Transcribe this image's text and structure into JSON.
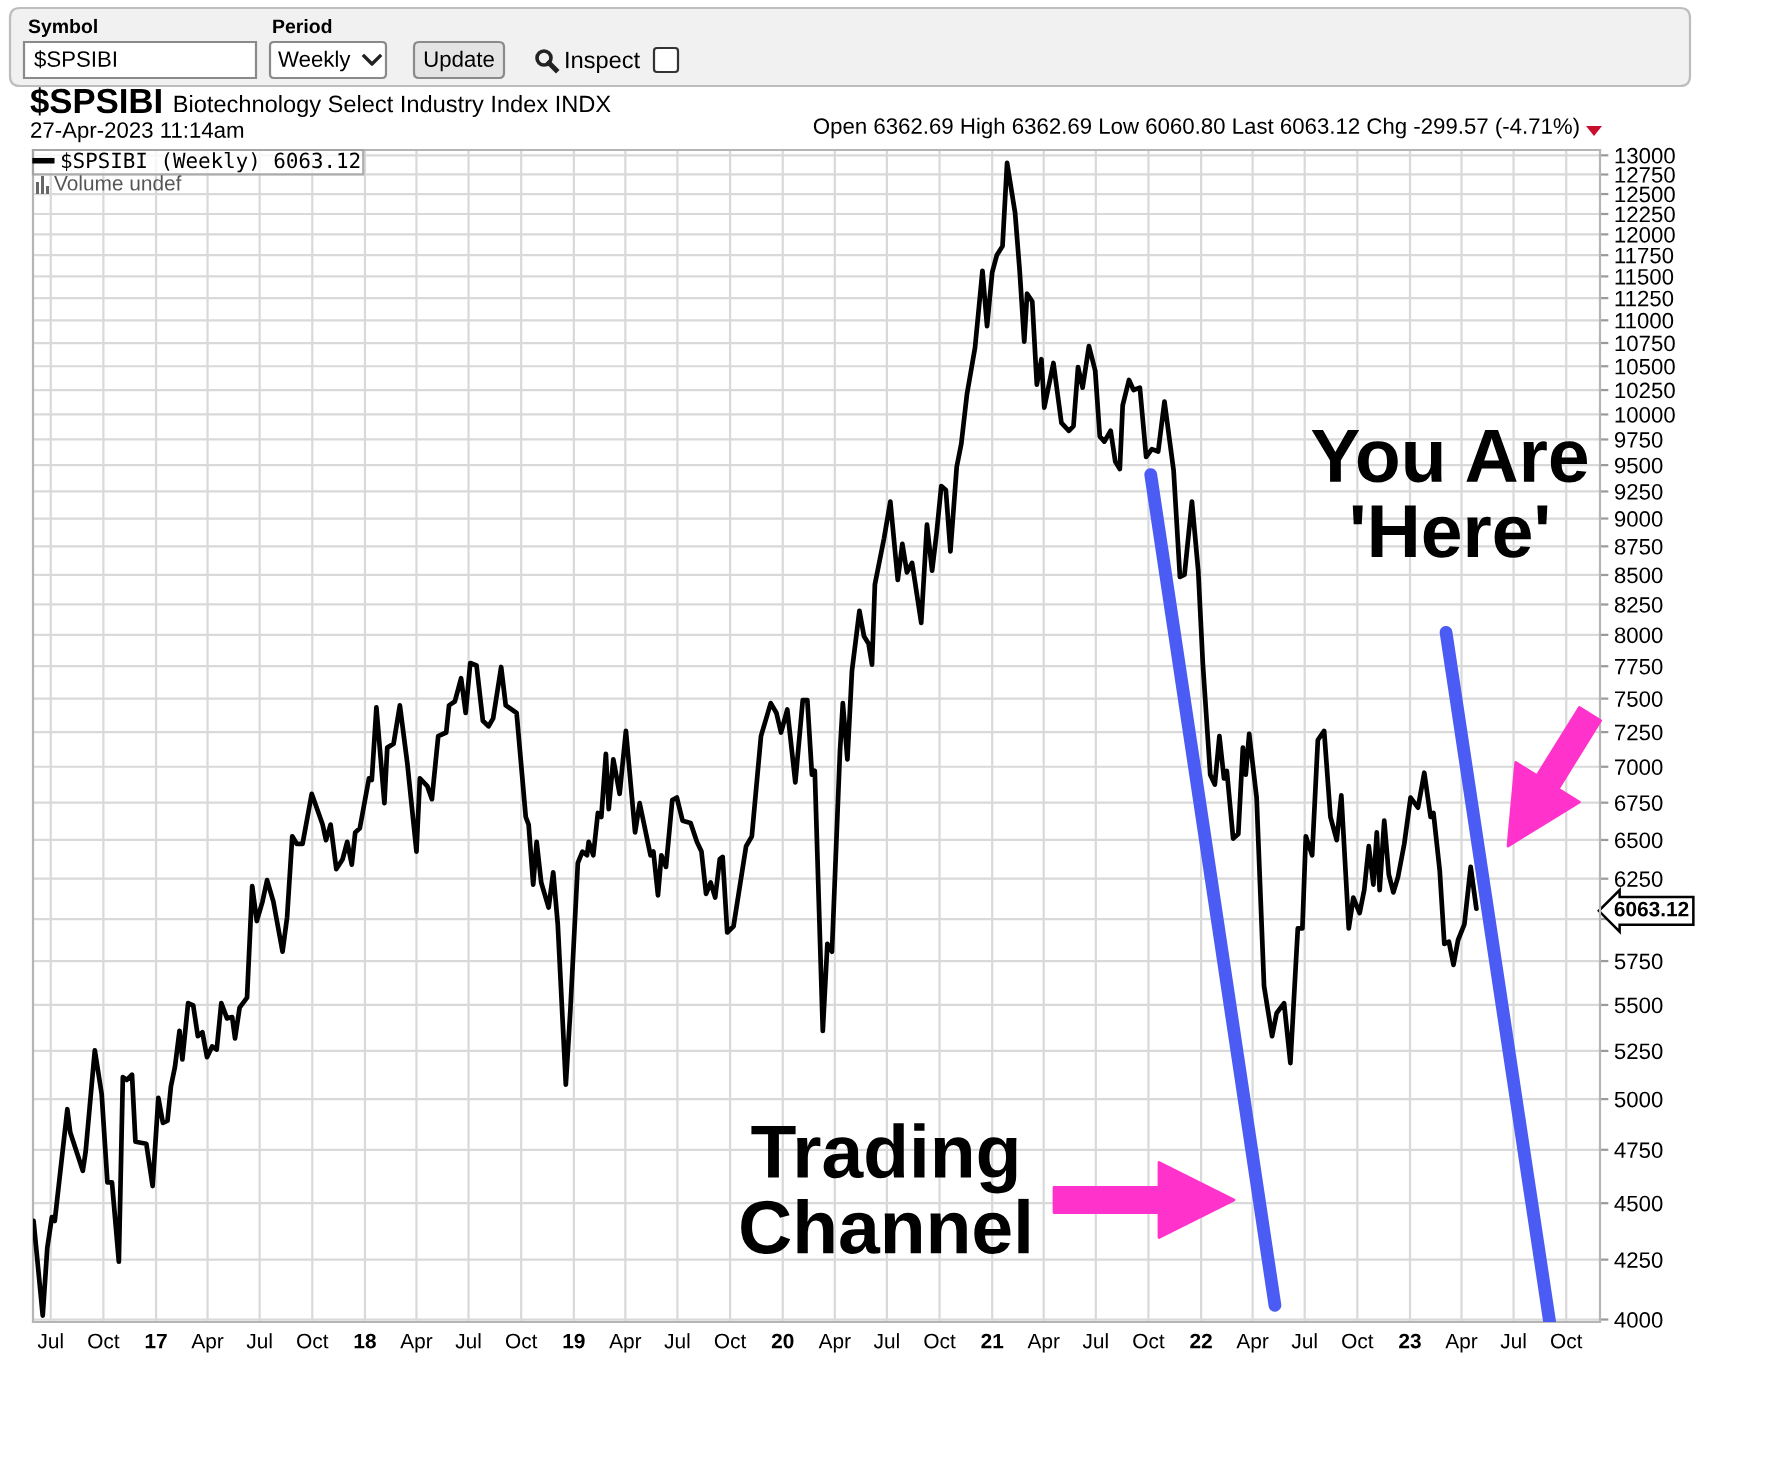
{
  "chart_data": {
    "type": "line",
    "title": "$SPSIBI",
    "subtitle": "Biotechnology Select Industry Index INDX",
    "annotations": [
      "Symbol",
      "$SPSIBI",
      "Period",
      "Weekly",
      "Update",
      "Inspect",
      "27-Apr-2023 11:14am",
      "Open 6362.69 High 6362.69 Low 6060.80 Last 6063.12 Chg -299.57 (-4.71%)",
      "Volume undef",
      "Trading\nChannel",
      "You Are\n'Here'"
    ],
    "series": [
      {
        "name": "$SPSIBI (Weekly) 6063.12",
        "color": "#000000",
        "x": [
          "2016-06-01",
          "2016-06-17",
          "2016-06-25",
          "2016-07-03",
          "2016-07-08",
          "2016-07-30",
          "2016-08-04",
          "2016-08-26",
          "2016-08-31",
          "2016-09-16",
          "2016-09-28",
          "2016-10-08",
          "2016-10-16",
          "2016-10-28",
          "2016-11-04",
          "2016-11-11",
          "2016-11-20",
          "2016-11-26",
          "2016-12-15",
          "2016-12-26",
          "2017-01-05",
          "2017-01-13",
          "2017-01-21",
          "2017-01-27",
          "2017-02-03",
          "2017-02-11",
          "2017-02-16",
          "2017-02-26",
          "2017-03-07",
          "2017-03-15",
          "2017-03-23",
          "2017-03-31",
          "2017-04-09",
          "2017-04-17",
          "2017-04-25",
          "2017-05-05",
          "2017-05-14",
          "2017-05-19",
          "2017-05-27",
          "2017-06-09",
          "2017-06-18",
          "2017-06-26",
          "2017-07-06",
          "2017-07-14",
          "2017-07-25",
          "2017-08-10",
          "2017-08-18",
          "2017-08-27",
          "2017-09-04",
          "2017-09-14",
          "2017-09-30",
          "2017-10-19",
          "2017-10-25",
          "2017-11-02",
          "2017-11-12",
          "2017-11-23",
          "2017-12-01",
          "2017-12-09",
          "2017-12-15",
          "2017-12-23",
          "2018-01-08",
          "2018-01-13",
          "2018-01-21",
          "2018-02-04",
          "2018-02-09",
          "2018-02-20",
          "2018-03-03",
          "2018-03-16",
          "2018-04-01",
          "2018-04-07",
          "2018-04-20",
          "2018-04-28",
          "2018-05-09",
          "2018-05-23",
          "2018-05-28",
          "2018-06-07",
          "2018-06-18",
          "2018-06-26",
          "2018-07-04",
          "2018-07-15",
          "2018-07-26",
          "2018-08-05",
          "2018-08-13",
          "2018-08-27",
          "2018-09-04",
          "2018-09-23",
          "2018-10-09",
          "2018-10-14",
          "2018-10-22",
          "2018-10-28",
          "2018-11-05",
          "2018-11-18",
          "2018-11-26",
          "2018-12-04",
          "2018-12-18",
          "2018-12-26",
          "2019-01-08",
          "2019-01-16",
          "2019-01-24",
          "2019-01-27",
          "2019-02-04",
          "2019-02-12",
          "2019-02-18",
          "2019-02-26",
          "2019-03-03",
          "2019-03-11",
          "2019-03-22",
          "2019-04-02",
          "2019-04-18",
          "2019-04-26",
          "2019-05-15",
          "2019-05-20",
          "2019-05-28",
          "2019-06-03",
          "2019-06-11",
          "2019-06-22",
          "2019-06-30",
          "2019-07-10",
          "2019-07-24",
          "2019-08-04",
          "2019-08-12",
          "2019-08-20",
          "2019-08-28",
          "2019-09-05",
          "2019-09-13",
          "2019-09-18",
          "2019-09-26",
          "2019-10-07",
          "2019-10-29",
          "2019-11-08",
          "2019-11-24",
          "2019-12-11",
          "2019-12-21",
          "2019-12-29",
          "2020-01-09",
          "2020-01-23",
          "2020-02-05",
          "2020-02-13",
          "2020-02-21",
          "2020-02-26",
          "2020-03-11",
          "2020-03-19",
          "2020-03-27",
          "2020-04-10",
          "2020-04-15",
          "2020-04-23",
          "2020-05-01",
          "2020-05-14",
          "2020-05-22",
          "2020-05-30",
          "2020-06-05",
          "2020-06-10",
          "2020-06-26",
          "2020-07-07",
          "2020-07-20",
          "2020-07-28",
          "2020-08-05",
          "2020-08-14",
          "2020-08-30",
          "2020-09-09",
          "2020-09-18",
          "2020-09-26",
          "2020-10-04",
          "2020-10-12",
          "2020-10-20",
          "2020-10-31",
          "2020-11-08",
          "2020-11-18",
          "2020-12-02",
          "2020-12-15",
          "2020-12-23",
          "2021-01-01",
          "2021-01-09",
          "2021-01-19",
          "2021-01-27",
          "2021-02-10",
          "2021-02-18",
          "2021-02-26",
          "2021-03-03",
          "2021-03-12",
          "2021-03-20",
          "2021-03-28",
          "2021-04-02",
          "2021-04-18",
          "2021-05-02",
          "2021-05-15",
          "2021-05-23",
          "2021-05-31",
          "2021-06-08",
          "2021-06-19",
          "2021-06-30",
          "2021-07-08",
          "2021-07-16",
          "2021-07-27",
          "2021-08-04",
          "2021-08-12",
          "2021-08-17",
          "2021-08-28",
          "2021-09-05",
          "2021-09-16",
          "2021-09-27",
          "2021-10-07",
          "2021-10-18",
          "2021-10-29",
          "2021-11-14",
          "2021-11-25",
          "2021-12-03",
          "2021-12-16",
          "2021-12-27",
          "2022-01-04",
          "2022-01-17",
          "2022-01-25",
          "2022-02-02",
          "2022-02-10",
          "2022-02-15",
          "2022-02-26",
          "2022-03-07",
          "2022-03-15",
          "2022-03-20",
          "2022-03-26",
          "2022-04-08",
          "2022-04-21",
          "2022-05-05",
          "2022-05-13",
          "2022-05-26",
          "2022-06-06",
          "2022-06-19",
          "2022-06-27",
          "2022-07-03",
          "2022-07-14",
          "2022-07-24",
          "2022-08-04",
          "2022-08-15",
          "2022-08-26",
          "2022-09-03",
          "2022-09-16",
          "2022-09-24",
          "2022-10-05",
          "2022-10-13",
          "2022-10-21",
          "2022-10-29",
          "2022-11-04",
          "2022-11-09",
          "2022-11-17",
          "2022-11-25",
          "2022-12-03",
          "2022-12-11",
          "2022-12-22",
          "2023-01-02",
          "2023-01-15",
          "2023-01-26",
          "2023-02-06",
          "2023-02-11",
          "2023-02-22",
          "2023-03-02",
          "2023-03-10",
          "2023-03-18",
          "2023-03-26",
          "2023-04-06",
          "2023-04-17",
          "2023-04-27"
        ],
        "values": [
          4420,
          4016,
          4302,
          4437,
          4420,
          4949,
          4835,
          4650,
          4741,
          5253,
          5026,
          4596,
          4596,
          4241,
          5113,
          5098,
          5125,
          4789,
          4779,
          4579,
          5006,
          4881,
          4892,
          5065,
          5165,
          5358,
          5205,
          5510,
          5497,
          5329,
          5350,
          5217,
          5274,
          5258,
          5510,
          5426,
          5433,
          5317,
          5485,
          5541,
          6203,
          5988,
          6107,
          6241,
          6107,
          5805,
          6011,
          6524,
          6474,
          6474,
          6811,
          6602,
          6499,
          6602,
          6311,
          6375,
          6488,
          6340,
          6550,
          6577,
          6918,
          6907,
          7433,
          6747,
          7137,
          7165,
          7449,
          7026,
          6424,
          6918,
          6864,
          6774,
          7220,
          7247,
          7449,
          7478,
          7656,
          7392,
          7775,
          7756,
          7334,
          7293,
          7352,
          7744,
          7449,
          7392,
          6653,
          6602,
          6213,
          6488,
          6226,
          6070,
          6290,
          5965,
          5074,
          5475,
          6351,
          6424,
          6400,
          6488,
          6400,
          6680,
          6653,
          7092,
          6706,
          7053,
          6811,
          7259,
          6550,
          6747,
          6400,
          6424,
          6146,
          6400,
          6325,
          6768,
          6785,
          6628,
          6613,
          6488,
          6424,
          6155,
          6226,
          6132,
          6375,
          6389,
          5919,
          5956,
          6459,
          6524,
          7220,
          7466,
          7392,
          7247,
          7418,
          6890,
          7489,
          7489,
          6944,
          6971,
          5358,
          5851,
          5805,
          7108,
          7466,
          7053,
          7715,
          8197,
          7989,
          7928,
          7763,
          8418,
          8821,
          9156,
          8457,
          8773,
          8522,
          8605,
          8097,
          8945,
          8537,
          8875,
          9300,
          9263,
          8705,
          9483,
          9707,
          10211,
          10700,
          11566,
          10936,
          11547,
          11748,
          11858,
          12901,
          12263,
          11566,
          10765,
          11300,
          11212,
          10307,
          10575,
          10070,
          10535,
          9914,
          9836,
          9882,
          10492,
          10275,
          10716,
          10452,
          9781,
          9729,
          9836,
          9535,
          9462,
          10092,
          10355,
          10250,
          10275,
          9579,
          9655,
          9632,
          10131,
          9447,
          8483,
          8503,
          9156,
          8537,
          7775,
          6944,
          6875,
          7220,
          6918,
          6971,
          6509,
          6540,
          7137,
          6944,
          7237,
          6785,
          5606,
          5329,
          5455,
          5510,
          5186,
          5943,
          5943,
          6524,
          6400,
          7192,
          7259,
          6653,
          6499,
          6800,
          5943,
          6132,
          6036,
          6178,
          6459,
          6213,
          6550,
          6178,
          6628,
          6276,
          6164,
          6260,
          6474,
          6785,
          6716,
          6958,
          6653,
          6680,
          6300,
          5851,
          5864,
          5728,
          5874,
          5967,
          6325,
          6063.12
        ]
      },
      {
        "type": "line",
        "color": "#4a5cf4",
        "x": [
          "2021-10-05",
          "2022-05-10"
        ],
        "values": [
          9410,
          4058
        ]
      },
      {
        "type": "line",
        "color": "#4a5cf4",
        "x": [
          "2023-03-05",
          "2023-09-02"
        ],
        "values": [
          8020,
          3990
        ]
      }
    ],
    "xlim": [
      "2016-05-31",
      "2023-11-29"
    ],
    "xticks": [
      {
        "value": "2016-07-01",
        "label": "Jul"
      },
      {
        "value": "2016-10-01",
        "label": "Oct"
      },
      {
        "value": "2017-01-01",
        "label": "17"
      },
      {
        "value": "2017-04-01",
        "label": "Apr"
      },
      {
        "value": "2017-07-01",
        "label": "Jul"
      },
      {
        "value": "2017-10-01",
        "label": "Oct"
      },
      {
        "value": "2018-01-01",
        "label": "18"
      },
      {
        "value": "2018-04-01",
        "label": "Apr"
      },
      {
        "value": "2018-07-01",
        "label": "Jul"
      },
      {
        "value": "2018-10-01",
        "label": "Oct"
      },
      {
        "value": "2019-01-01",
        "label": "19"
      },
      {
        "value": "2019-04-01",
        "label": "Apr"
      },
      {
        "value": "2019-07-01",
        "label": "Jul"
      },
      {
        "value": "2019-10-01",
        "label": "Oct"
      },
      {
        "value": "2020-01-01",
        "label": "20"
      },
      {
        "value": "2020-04-01",
        "label": "Apr"
      },
      {
        "value": "2020-07-01",
        "label": "Jul"
      },
      {
        "value": "2020-10-01",
        "label": "Oct"
      },
      {
        "value": "2021-01-01",
        "label": "21"
      },
      {
        "value": "2021-04-01",
        "label": "Apr"
      },
      {
        "value": "2021-07-01",
        "label": "Jul"
      },
      {
        "value": "2021-10-01",
        "label": "Oct"
      },
      {
        "value": "2022-01-01",
        "label": "22"
      },
      {
        "value": "2022-04-01",
        "label": "Apr"
      },
      {
        "value": "2022-07-01",
        "label": "Jul"
      },
      {
        "value": "2022-10-01",
        "label": "Oct"
      },
      {
        "value": "2023-01-01",
        "label": "23"
      },
      {
        "value": "2023-04-01",
        "label": "Apr"
      },
      {
        "value": "2023-07-01",
        "label": "Jul"
      },
      {
        "value": "2023-10-01",
        "label": "Oct"
      }
    ],
    "ylim": [
      3990,
      13070
    ],
    "yticks": [
      4000,
      4250,
      4500,
      4750,
      5000,
      5250,
      5500,
      5750,
      {
        "value": 6000,
        "label": null
      },
      {
        "value": 6063.12,
        "label": "6063.12"
      },
      6250,
      6500,
      6750,
      7000,
      7250,
      7500,
      7750,
      8000,
      8250,
      8500,
      8750,
      9000,
      9250,
      9500,
      9750,
      10000,
      10250,
      10500,
      10750,
      11000,
      11250,
      11500,
      11750,
      12000,
      12250,
      12500,
      12750,
      13000
    ],
    "log": true,
    "grid": true,
    "legend": "top left"
  }
}
